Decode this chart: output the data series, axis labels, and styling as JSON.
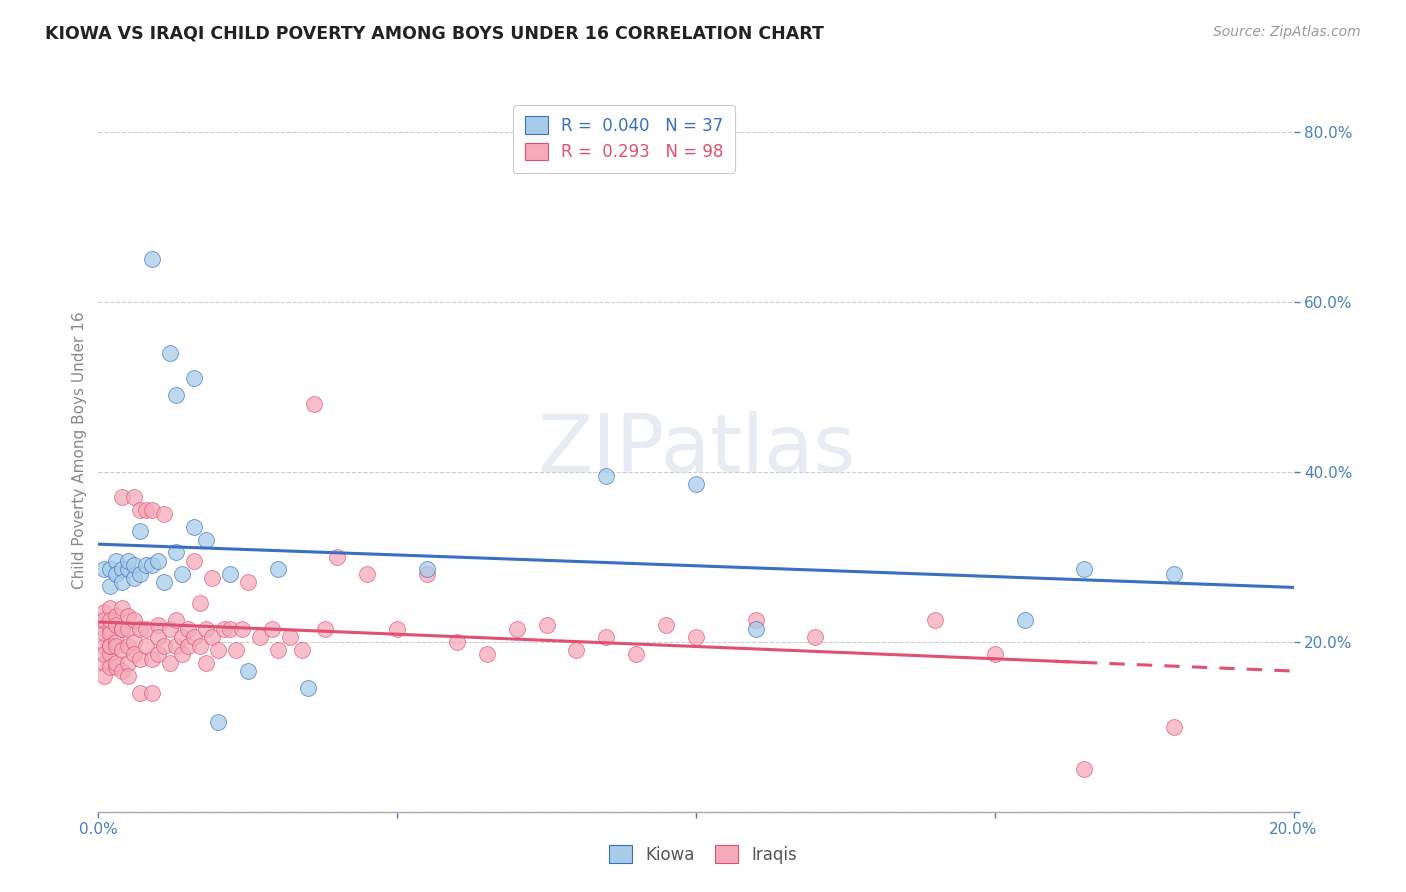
{
  "title": "KIOWA VS IRAQI CHILD POVERTY AMONG BOYS UNDER 16 CORRELATION CHART",
  "source": "Source: ZipAtlas.com",
  "ylabel": "Child Poverty Among Boys Under 16",
  "xlim": [
    0.0,
    0.2
  ],
  "ylim": [
    0.0,
    0.85
  ],
  "kiowa_color": "#a8cce8",
  "iraqis_color": "#f4aab8",
  "kiowa_line_color": "#3a6fc4",
  "iraqis_line_color": "#e05070",
  "background_color": "#ffffff",
  "kiowa_x": [
    0.001,
    0.002,
    0.002,
    0.003,
    0.003,
    0.004,
    0.004,
    0.005,
    0.005,
    0.006,
    0.006,
    0.007,
    0.007,
    0.008,
    0.009,
    0.009,
    0.01,
    0.011,
    0.012,
    0.013,
    0.013,
    0.014,
    0.016,
    0.016,
    0.018,
    0.02,
    0.022,
    0.025,
    0.03,
    0.035,
    0.055,
    0.085,
    0.1,
    0.11,
    0.155,
    0.165,
    0.18
  ],
  "kiowa_y": [
    0.285,
    0.265,
    0.285,
    0.295,
    0.28,
    0.285,
    0.27,
    0.285,
    0.295,
    0.275,
    0.29,
    0.33,
    0.28,
    0.29,
    0.65,
    0.29,
    0.295,
    0.27,
    0.54,
    0.49,
    0.305,
    0.28,
    0.51,
    0.335,
    0.32,
    0.105,
    0.28,
    0.165,
    0.285,
    0.145,
    0.285,
    0.395,
    0.385,
    0.215,
    0.225,
    0.285,
    0.28
  ],
  "iraqis_x": [
    0.001,
    0.001,
    0.001,
    0.001,
    0.001,
    0.001,
    0.001,
    0.001,
    0.002,
    0.002,
    0.002,
    0.002,
    0.002,
    0.002,
    0.002,
    0.002,
    0.003,
    0.003,
    0.003,
    0.003,
    0.003,
    0.003,
    0.004,
    0.004,
    0.004,
    0.004,
    0.004,
    0.004,
    0.005,
    0.005,
    0.005,
    0.005,
    0.005,
    0.006,
    0.006,
    0.006,
    0.006,
    0.007,
    0.007,
    0.007,
    0.007,
    0.008,
    0.008,
    0.008,
    0.009,
    0.009,
    0.009,
    0.01,
    0.01,
    0.01,
    0.011,
    0.011,
    0.012,
    0.012,
    0.013,
    0.013,
    0.014,
    0.014,
    0.015,
    0.015,
    0.016,
    0.016,
    0.017,
    0.017,
    0.018,
    0.018,
    0.019,
    0.019,
    0.02,
    0.021,
    0.022,
    0.023,
    0.024,
    0.025,
    0.027,
    0.029,
    0.03,
    0.032,
    0.034,
    0.036,
    0.038,
    0.04,
    0.045,
    0.05,
    0.055,
    0.06,
    0.065,
    0.07,
    0.075,
    0.08,
    0.085,
    0.09,
    0.095,
    0.1,
    0.11,
    0.12,
    0.14,
    0.15,
    0.165,
    0.18
  ],
  "iraqis_y": [
    0.195,
    0.215,
    0.175,
    0.235,
    0.21,
    0.185,
    0.225,
    0.16,
    0.24,
    0.215,
    0.185,
    0.21,
    0.195,
    0.225,
    0.17,
    0.195,
    0.2,
    0.23,
    0.195,
    0.17,
    0.22,
    0.175,
    0.215,
    0.19,
    0.24,
    0.37,
    0.215,
    0.165,
    0.215,
    0.195,
    0.175,
    0.23,
    0.16,
    0.225,
    0.2,
    0.37,
    0.185,
    0.355,
    0.215,
    0.18,
    0.14,
    0.355,
    0.215,
    0.195,
    0.355,
    0.18,
    0.14,
    0.22,
    0.185,
    0.205,
    0.195,
    0.35,
    0.175,
    0.215,
    0.195,
    0.225,
    0.205,
    0.185,
    0.215,
    0.195,
    0.295,
    0.205,
    0.195,
    0.245,
    0.175,
    0.215,
    0.275,
    0.205,
    0.19,
    0.215,
    0.215,
    0.19,
    0.215,
    0.27,
    0.205,
    0.215,
    0.19,
    0.205,
    0.19,
    0.48,
    0.215,
    0.3,
    0.28,
    0.215,
    0.28,
    0.2,
    0.185,
    0.215,
    0.22,
    0.19,
    0.205,
    0.185,
    0.22,
    0.205,
    0.225,
    0.205,
    0.225,
    0.185,
    0.05,
    0.1
  ]
}
